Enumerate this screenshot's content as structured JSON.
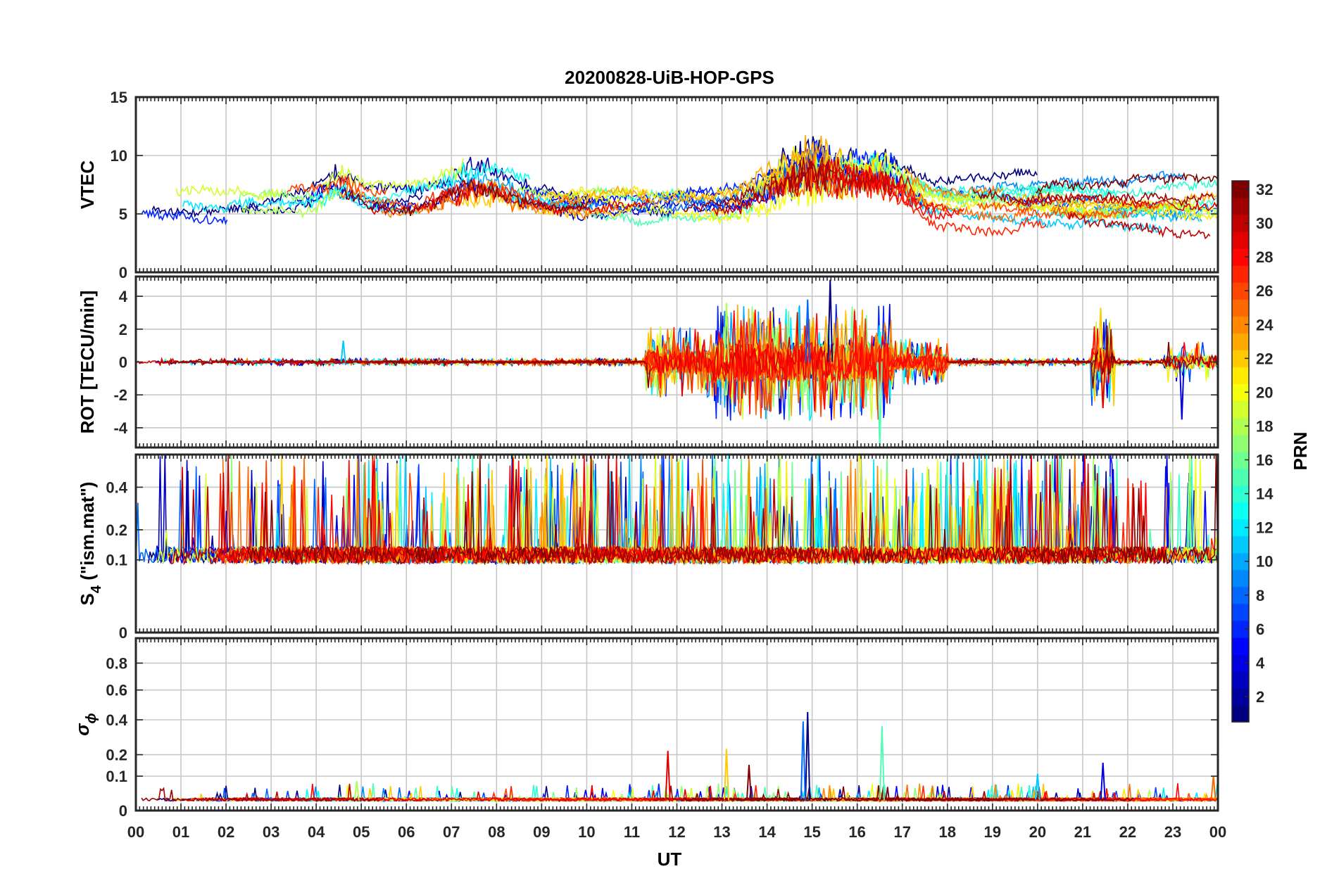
{
  "chart_data": {
    "type": "line",
    "title": "20200828-UiB-HOP-GPS",
    "xlabel": "UT",
    "x_range": [
      0,
      24
    ],
    "x_ticks": [
      "00",
      "01",
      "02",
      "03",
      "04",
      "05",
      "06",
      "07",
      "08",
      "09",
      "10",
      "11",
      "12",
      "13",
      "14",
      "15",
      "16",
      "17",
      "18",
      "19",
      "20",
      "21",
      "22",
      "23",
      "00"
    ],
    "colorbar": {
      "label": "PRN",
      "range": [
        1,
        32
      ],
      "ticks": [
        "2",
        "4",
        "6",
        "8",
        "10",
        "12",
        "14",
        "16",
        "18",
        "20",
        "22",
        "24",
        "26",
        "28",
        "30",
        "32"
      ],
      "colormap": "jet"
    },
    "panels": [
      {
        "id": "vtec",
        "ylabel": "VTEC",
        "ylim": [
          0,
          15
        ],
        "yticks": [
          {
            "v": 0,
            "label": "0"
          },
          {
            "v": 5,
            "label": "5"
          },
          {
            "v": 10,
            "label": "10"
          },
          {
            "v": 15,
            "label": "15"
          }
        ],
        "baseline": 6.0,
        "noise": 0.7,
        "style": "arcs",
        "events": [
          {
            "t": 15.0,
            "amp": 3.0,
            "width": 1.2
          },
          {
            "t": 16.6,
            "amp": 2.0,
            "width": 0.8
          },
          {
            "t": 4.5,
            "amp": 1.2,
            "width": 0.5
          },
          {
            "t": 7.5,
            "amp": 1.5,
            "width": 1.0
          }
        ]
      },
      {
        "id": "rot",
        "ylabel": "ROT [TECU/min]",
        "ylim": [
          -5.2,
          5.2
        ],
        "yticks": [
          {
            "v": -4,
            "label": "-4"
          },
          {
            "v": -2,
            "label": "-2"
          },
          {
            "v": 0,
            "label": "0"
          },
          {
            "v": 2,
            "label": "2"
          },
          {
            "v": 4,
            "label": "4"
          }
        ],
        "baseline": 0.0,
        "noise": 0.12,
        "style": "noise",
        "activity": [
          {
            "t0": 11.3,
            "t1": 12.8,
            "amp": 1.2
          },
          {
            "t0": 12.8,
            "t1": 16.8,
            "amp": 2.0
          },
          {
            "t0": 16.8,
            "t1": 18.0,
            "amp": 0.8
          },
          {
            "t0": 21.2,
            "t1": 21.7,
            "amp": 1.5
          },
          {
            "t0": 22.8,
            "t1": 24.0,
            "amp": 0.7
          }
        ],
        "peaks": [
          {
            "t": 15.4,
            "v": 5.0
          },
          {
            "t": 14.9,
            "v": 3.8
          },
          {
            "t": 16.5,
            "v": -5.2
          },
          {
            "t": 21.4,
            "v": 3.3
          },
          {
            "t": 21.45,
            "v": -2.8
          },
          {
            "t": 23.2,
            "v": -3.5
          },
          {
            "t": 4.6,
            "v": 1.3
          },
          {
            "t": 13.1,
            "v": 3.6
          },
          {
            "t": 14.7,
            "v": -2.5
          }
        ]
      },
      {
        "id": "s4",
        "ylabel_main": "S",
        "ylabel_sub": "4",
        "ylabel_rest": " (\"ism.mat\")",
        "ylim": [
          0,
          0.6
        ],
        "ypow": 0.5,
        "yticks": [
          {
            "v": 0,
            "label": "0"
          },
          {
            "v": 0.1,
            "label": "0.1"
          },
          {
            "v": 0.2,
            "label": "0.2"
          },
          {
            "v": 0.4,
            "label": "0.4"
          }
        ],
        "baseline": 0.09,
        "noise": 0.05,
        "style": "spiky",
        "spike_rate": 0.05,
        "spike_max": 0.55
      },
      {
        "id": "sigma",
        "ylabel_main": "σ",
        "ylabel_sub": "ϕ",
        "ylim": [
          0,
          1
        ],
        "ypow": 0.7,
        "yticks": [
          {
            "v": 0,
            "label": "0"
          },
          {
            "v": 0.1,
            "label": "0.1"
          },
          {
            "v": 0.2,
            "label": "0.2"
          },
          {
            "v": 0.4,
            "label": "0.4"
          },
          {
            "v": 0.6,
            "label": "0.6"
          },
          {
            "v": 0.8,
            "label": "0.8"
          }
        ],
        "baseline": 0.02,
        "noise": 0.008,
        "style": "flat",
        "peaks": [
          {
            "t": 14.9,
            "v": 0.45
          },
          {
            "t": 14.8,
            "v": 0.39
          },
          {
            "t": 16.55,
            "v": 0.36
          },
          {
            "t": 13.1,
            "v": 0.23
          },
          {
            "t": 11.8,
            "v": 0.22
          },
          {
            "t": 21.45,
            "v": 0.16
          },
          {
            "t": 20.0,
            "v": 0.11
          },
          {
            "t": 4.9,
            "v": 0.08
          },
          {
            "t": 23.9,
            "v": 0.1
          },
          {
            "t": 13.6,
            "v": 0.15
          }
        ]
      }
    ],
    "prn_series": [
      1,
      2,
      3,
      4,
      5,
      6,
      7,
      8,
      9,
      10,
      11,
      12,
      13,
      14,
      15,
      16,
      17,
      18,
      19,
      20,
      21,
      22,
      23,
      24,
      25,
      26,
      27,
      28,
      29,
      30,
      31,
      32
    ]
  }
}
